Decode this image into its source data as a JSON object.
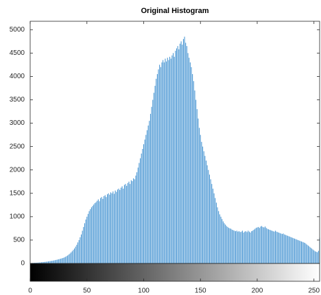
{
  "chart_data": {
    "type": "histogram",
    "title": "Original Histogram",
    "color": "#3d8fd0",
    "xlim": [
      0,
      255
    ],
    "ylim": [
      0,
      5180
    ],
    "xticks": [
      0,
      50,
      100,
      150,
      200,
      250
    ],
    "yticks": [
      0,
      500,
      1000,
      1500,
      2000,
      2500,
      3000,
      3500,
      4000,
      4500,
      5000
    ],
    "values": [
      5,
      8,
      10,
      12,
      14,
      15,
      16,
      18,
      20,
      22,
      25,
      28,
      30,
      33,
      36,
      40,
      44,
      48,
      52,
      56,
      60,
      65,
      70,
      76,
      82,
      88,
      95,
      102,
      110,
      118,
      128,
      140,
      155,
      170,
      190,
      210,
      235,
      260,
      290,
      320,
      360,
      400,
      450,
      500,
      560,
      620,
      700,
      780,
      860,
      940,
      1000,
      1060,
      1120,
      1160,
      1200,
      1230,
      1260,
      1290,
      1310,
      1340,
      1370,
      1330,
      1400,
      1420,
      1380,
      1440,
      1460,
      1420,
      1480,
      1500,
      1470,
      1520,
      1500,
      1540,
      1490,
      1560,
      1530,
      1580,
      1600,
      1570,
      1620,
      1650,
      1600,
      1680,
      1700,
      1660,
      1720,
      1750,
      1700,
      1780,
      1760,
      1820,
      1800,
      1880,
      1950,
      2050,
      2150,
      2250,
      2350,
      2450,
      2550,
      2650,
      2750,
      2850,
      2950,
      3050,
      3200,
      3350,
      3500,
      3650,
      3800,
      3950,
      4050,
      4150,
      4250,
      4200,
      4300,
      4350,
      4300,
      4380,
      4320,
      4400,
      4350,
      4420,
      4380,
      4450,
      4500,
      4420,
      4550,
      4600,
      4650,
      4580,
      4700,
      4750,
      4680,
      4800,
      4850,
      4720,
      4650,
      4500,
      4400,
      4300,
      4200,
      4050,
      3900,
      3700,
      3500,
      3300,
      3100,
      2900,
      2750,
      2600,
      2500,
      2400,
      2300,
      2200,
      2100,
      2000,
      1900,
      1800,
      1700,
      1600,
      1500,
      1400,
      1300,
      1200,
      1120,
      1050,
      1000,
      950,
      900,
      860,
      830,
      800,
      780,
      760,
      750,
      740,
      720,
      710,
      700,
      690,
      700,
      680,
      690,
      670,
      680,
      700,
      660,
      680,
      690,
      670,
      700,
      680,
      660,
      690,
      700,
      720,
      740,
      760,
      770,
      780,
      760,
      790,
      800,
      780,
      770,
      790,
      760,
      740,
      730,
      720,
      710,
      700,
      690,
      680,
      700,
      680,
      670,
      660,
      650,
      640,
      630,
      640,
      620,
      610,
      600,
      590,
      580,
      570,
      560,
      550,
      540,
      530,
      520,
      510,
      500,
      490,
      480,
      470,
      460,
      450,
      440,
      420,
      400,
      380,
      360,
      340,
      320,
      300,
      280,
      260,
      250,
      240,
      270,
      550
    ]
  }
}
